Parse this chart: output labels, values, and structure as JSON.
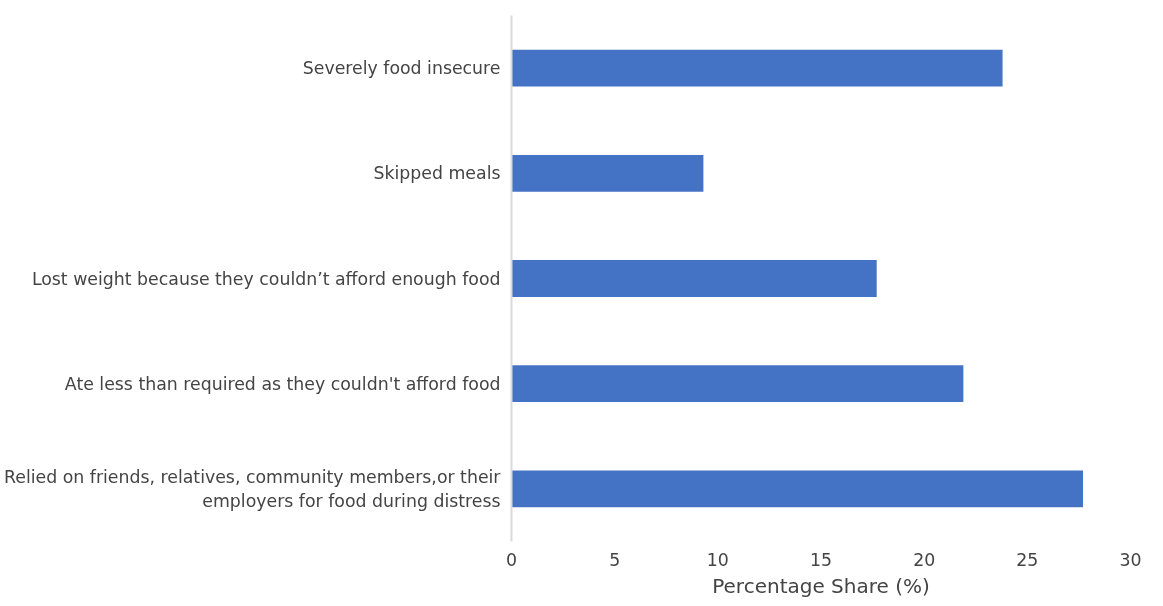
{
  "chart_data": {
    "type": "bar",
    "orientation": "horizontal",
    "xlabel": "Percentage Share (%)",
    "categories": [
      "Severely food insecure",
      "Skipped meals",
      "Lost weight because they couldn’t afford enough food",
      "Ate less than required as they couldn't afford food",
      "Relied on friends, relatives, community members,or their\nemployers for food during distress"
    ],
    "values": [
      23.8,
      9.3,
      17.7,
      21.9,
      27.7
    ],
    "color": "#4472c4",
    "xlim": [
      0,
      30
    ],
    "xticks": [
      0,
      5,
      10,
      15,
      20,
      25,
      30
    ],
    "grid": false
  }
}
